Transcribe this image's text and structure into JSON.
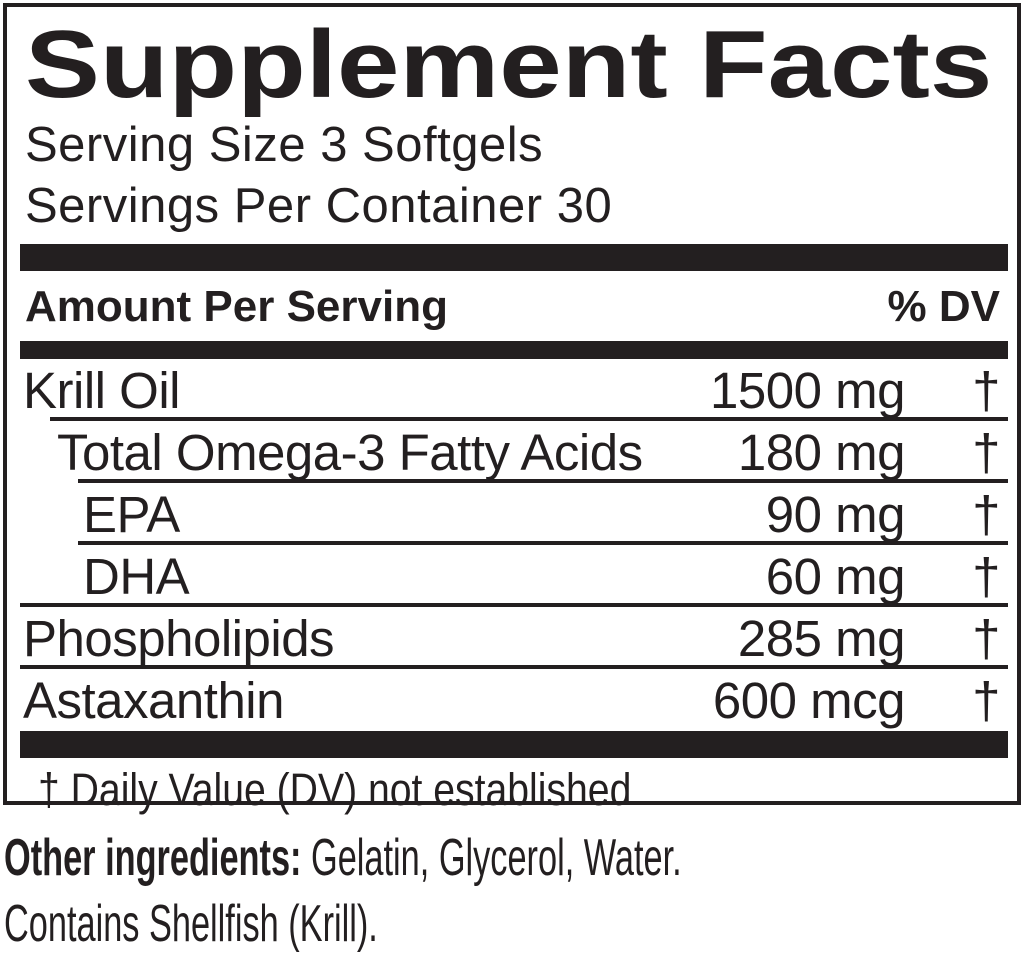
{
  "label": {
    "title": "Supplement Facts",
    "serving_size": "Serving Size 3 Softgels",
    "servings_per_container": "Servings Per Container 30",
    "header": {
      "amount_per_serving": "Amount Per Serving",
      "percent_dv": "% DV"
    },
    "rows": [
      {
        "name": "Krill Oil",
        "amount": "1500 mg",
        "dv": "†",
        "level": 0
      },
      {
        "name": "Total Omega-3 Fatty Acids",
        "amount": "180 mg",
        "dv": "†",
        "level": 1
      },
      {
        "name": "EPA",
        "amount": "90 mg",
        "dv": "†",
        "level": 2
      },
      {
        "name": "DHA",
        "amount": "60 mg",
        "dv": "†",
        "level": 2
      },
      {
        "name": "Phospholipids",
        "amount": "285 mg",
        "dv": "†",
        "level": 0
      },
      {
        "name": "Astaxanthin",
        "amount": "600 mcg",
        "dv": "†",
        "level": 0
      }
    ],
    "footnote": "† Daily Value (DV) not established",
    "other_ingredients_label": "Other ingredients:",
    "other_ingredients_text": " Gelatin, Glycerol, Water.",
    "allergen_statement": "Contains Shellfish (Krill)."
  },
  "colors": {
    "ink": "#231f20",
    "background": "#ffffff"
  }
}
